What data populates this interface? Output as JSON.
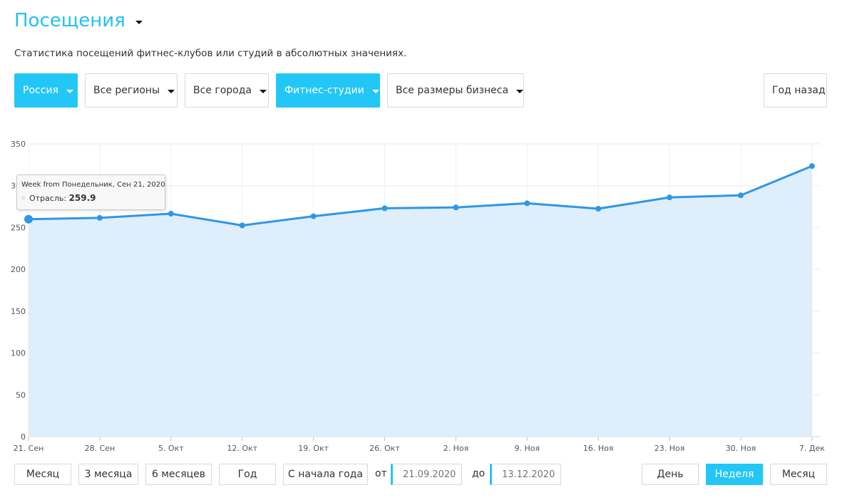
{
  "header": {
    "title": "Посещения",
    "subtitle": "Статистика посещений фитнес-клубов или студий в абсолютных значениях."
  },
  "filters": {
    "country": "Россия",
    "region": "Все регионы",
    "city": "Все города",
    "type": "Фитнес-студии",
    "size": "Все размеры бизнеса",
    "compare": "Год назад"
  },
  "tooltip": {
    "header": "Week from Понедельник, Сен 21, 2020",
    "series": "Отрасль",
    "value": "259.9"
  },
  "period_buttons": {
    "month": "Месяц",
    "three_months": "3 месяца",
    "six_months": "6 месяцев",
    "year": "Год",
    "ytd": "С начала года"
  },
  "date_range": {
    "from_label": "от",
    "from_placeholder": "21.09.2020",
    "to_label": "до",
    "to_placeholder": "13.12.2020"
  },
  "granularity": {
    "day": "День",
    "week": "Неделя",
    "month": "Месяц",
    "selected": "Неделя"
  },
  "colors": {
    "accent": "#22c7f5",
    "title": "#22c1ee",
    "series_line": "#2f97e6",
    "series_fill": "#deeefb"
  },
  "chart_data": {
    "type": "area",
    "categories": [
      "21. Сен",
      "28. Сен",
      "5. Окт",
      "12. Окт",
      "19. Окт",
      "26. Окт",
      "2. Ноя",
      "9. Ноя",
      "16. Ноя",
      "23. Ноя",
      "30. Ноя",
      "7. Дек"
    ],
    "series": [
      {
        "name": "Отрасль",
        "values": [
          259.9,
          261.5,
          266.5,
          252.5,
          263.5,
          273,
          274,
          279,
          272.5,
          286,
          288.5,
          323.5
        ]
      }
    ],
    "yticks": [
      0,
      50,
      100,
      150,
      200,
      250,
      300,
      350
    ],
    "ylim": [
      0,
      350
    ],
    "grid": true,
    "highlighted_index": 0
  }
}
